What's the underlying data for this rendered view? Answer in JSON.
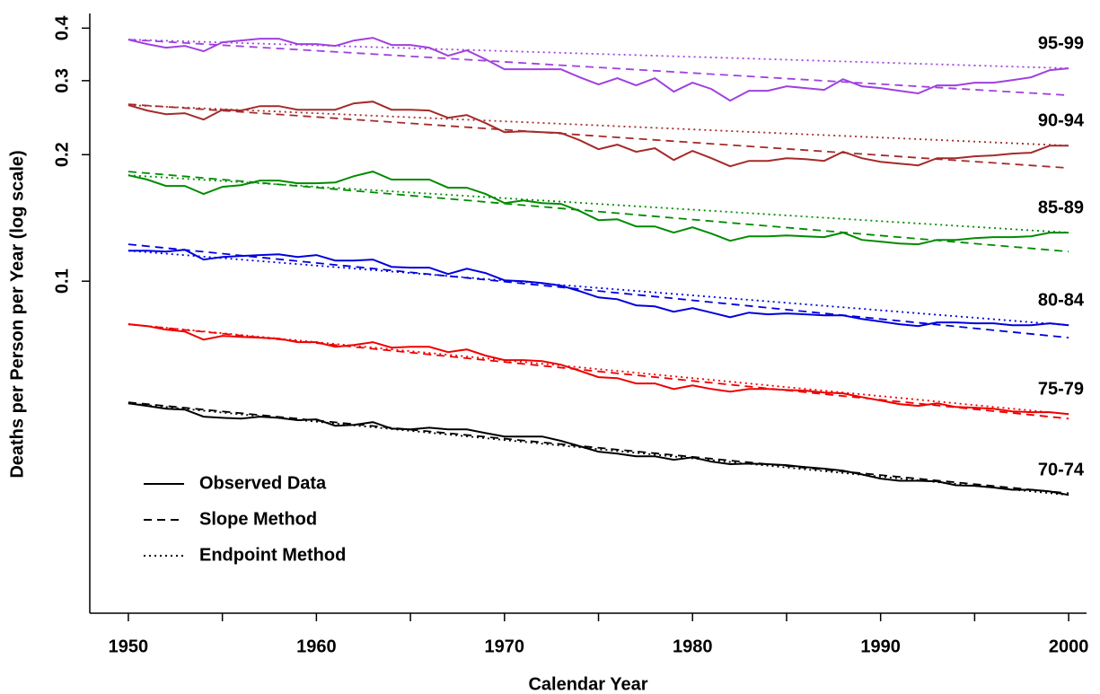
{
  "chart_data": {
    "type": "line",
    "log_y": true,
    "xlabel": "Calendar Year",
    "ylabel": "Deaths per Person per Year (log scale)",
    "xlim": [
      1947.95,
      2000.95
    ],
    "ylim": [
      0.01622,
      0.4335
    ],
    "xticks": [
      1950,
      1960,
      1970,
      1980,
      1990,
      2000
    ],
    "xminor_ticks": [
      1955,
      1965,
      1975,
      1985,
      1995
    ],
    "yticks": [
      0.1,
      0.2,
      0.3,
      0.4
    ],
    "x": [
      1950,
      1951,
      1952,
      1953,
      1954,
      1955,
      1956,
      1957,
      1958,
      1959,
      1960,
      1961,
      1962,
      1963,
      1964,
      1965,
      1966,
      1967,
      1968,
      1969,
      1970,
      1971,
      1972,
      1973,
      1974,
      1975,
      1976,
      1977,
      1978,
      1979,
      1980,
      1981,
      1982,
      1983,
      1984,
      1985,
      1986,
      1987,
      1988,
      1989,
      1990,
      1991,
      1992,
      1993,
      1994,
      1995,
      1996,
      1997,
      1998,
      1999,
      2000
    ],
    "method_x": [
      1950,
      2000
    ],
    "legend": [
      {
        "label": "Observed Data",
        "style": "solid"
      },
      {
        "label": "Slope Method",
        "style": "dashed"
      },
      {
        "label": "Endpoint Method",
        "style": "dotted"
      }
    ],
    "groups": [
      {
        "label": "95-99",
        "color": "#a040e0",
        "observed": [
          0.3756,
          0.3665,
          0.3594,
          0.3629,
          0.3524,
          0.3702,
          0.3738,
          0.3775,
          0.3775,
          0.3665,
          0.3665,
          0.3629,
          0.3738,
          0.3794,
          0.3648,
          0.3648,
          0.3594,
          0.3439,
          0.3541,
          0.3372,
          0.3194,
          0.3194,
          0.3194,
          0.3194,
          0.3055,
          0.2938,
          0.304,
          0.2923,
          0.304,
          0.2825,
          0.2967,
          0.2867,
          0.2689,
          0.2838,
          0.2838,
          0.2909,
          0.2881,
          0.2853,
          0.3025,
          0.2909,
          0.2881,
          0.2838,
          0.2798,
          0.2923,
          0.2923,
          0.2967,
          0.2967,
          0.301,
          0.3055,
          0.3178,
          0.321
        ],
        "slope": [
          0.3756,
          0.2769
        ],
        "endpoint": [
          0.3756,
          0.321
        ]
      },
      {
        "label": "90-94",
        "color": "#a52a2a",
        "observed": [
          0.2623,
          0.2547,
          0.2497,
          0.251,
          0.2424,
          0.2559,
          0.2547,
          0.261,
          0.261,
          0.2559,
          0.2559,
          0.2559,
          0.2649,
          0.2675,
          0.2559,
          0.2559,
          0.2547,
          0.2448,
          0.2485,
          0.2377,
          0.2263,
          0.2274,
          0.2263,
          0.2252,
          0.2165,
          0.2061,
          0.2113,
          0.2031,
          0.2072,
          0.1943,
          0.2041,
          0.1962,
          0.1877,
          0.1933,
          0.1933,
          0.1962,
          0.1952,
          0.1933,
          0.2031,
          0.1962,
          0.1924,
          0.1905,
          0.1886,
          0.1962,
          0.1962,
          0.1982,
          0.1992,
          0.2012,
          0.2022,
          0.2102,
          0.2102
        ],
        "slope": [
          0.2636,
          0.1859
        ],
        "endpoint": [
          0.2623,
          0.2102
        ]
      },
      {
        "label": "85-89",
        "color": "#008b00",
        "observed": [
          0.1787,
          0.1745,
          0.1685,
          0.1685,
          0.1612,
          0.1677,
          0.1693,
          0.1736,
          0.1736,
          0.171,
          0.171,
          0.1718,
          0.1778,
          0.1823,
          0.1745,
          0.1745,
          0.1745,
          0.1669,
          0.1669,
          0.1612,
          0.1534,
          0.1557,
          0.1534,
          0.1527,
          0.1468,
          0.1397,
          0.1404,
          0.135,
          0.135,
          0.1305,
          0.1343,
          0.1298,
          0.1248,
          0.1279,
          0.1279,
          0.1285,
          0.1279,
          0.1273,
          0.1305,
          0.1254,
          0.1242,
          0.1229,
          0.1224,
          0.1254,
          0.1254,
          0.1266,
          0.1273,
          0.1273,
          0.1279,
          0.1305,
          0.1305
        ],
        "slope": [
          0.1823,
          0.1176
        ],
        "endpoint": [
          0.1787,
          0.1305
        ]
      },
      {
        "label": "80-84",
        "color": "#0000dd",
        "observed": [
          0.1182,
          0.1182,
          0.1176,
          0.1188,
          0.1126,
          0.1142,
          0.1148,
          0.1154,
          0.1159,
          0.1142,
          0.1154,
          0.112,
          0.112,
          0.1126,
          0.1082,
          0.1077,
          0.1077,
          0.104,
          0.1071,
          0.1045,
          0.1005,
          0.1,
          0.099,
          0.0976,
          0.0947,
          0.0915,
          0.0906,
          0.0876,
          0.0871,
          0.0846,
          0.0863,
          0.0842,
          0.0821,
          0.0842,
          0.0834,
          0.0838,
          0.0834,
          0.0829,
          0.0829,
          0.0813,
          0.0802,
          0.079,
          0.0782,
          0.0798,
          0.0798,
          0.0794,
          0.0794,
          0.0786,
          0.0786,
          0.0794,
          0.0786
        ],
        "slope": [
          0.1224,
          0.0734
        ],
        "endpoint": [
          0.1182,
          0.0786
        ]
      },
      {
        "label": "75-79",
        "color": "#ee0000",
        "observed": [
          0.079,
          0.0782,
          0.0767,
          0.0759,
          0.0726,
          0.0741,
          0.0737,
          0.0734,
          0.073,
          0.0716,
          0.0716,
          0.0698,
          0.0705,
          0.0716,
          0.0695,
          0.0698,
          0.0698,
          0.0678,
          0.0688,
          0.0665,
          0.0649,
          0.0649,
          0.0645,
          0.0633,
          0.0612,
          0.0591,
          0.0588,
          0.0571,
          0.0571,
          0.0554,
          0.0565,
          0.0554,
          0.0546,
          0.0554,
          0.0554,
          0.0551,
          0.0549,
          0.0543,
          0.0541,
          0.053,
          0.052,
          0.051,
          0.0505,
          0.0512,
          0.0502,
          0.05,
          0.0497,
          0.049,
          0.0488,
          0.0488,
          0.0483
        ],
        "slope": [
          0.079,
          0.0471
        ],
        "endpoint": [
          0.079,
          0.0483
        ]
      },
      {
        "label": "70-74",
        "color": "#000000",
        "observed": [
          0.0512,
          0.0505,
          0.0497,
          0.0495,
          0.0476,
          0.0473,
          0.0471,
          0.0476,
          0.0473,
          0.0467,
          0.0469,
          0.0453,
          0.0455,
          0.0462,
          0.0446,
          0.0444,
          0.0448,
          0.0444,
          0.0444,
          0.0435,
          0.0427,
          0.0427,
          0.0427,
          0.0417,
          0.0405,
          0.0393,
          0.0389,
          0.0383,
          0.0383,
          0.0376,
          0.0381,
          0.0372,
          0.0367,
          0.0368,
          0.0367,
          0.0365,
          0.0361,
          0.0358,
          0.0354,
          0.0347,
          0.0339,
          0.0335,
          0.0335,
          0.0334,
          0.0327,
          0.0326,
          0.0323,
          0.0319,
          0.0319,
          0.0316,
          0.031
        ],
        "slope": [
          0.0515,
          0.0313
        ],
        "endpoint": [
          0.0512,
          0.031
        ]
      }
    ]
  }
}
